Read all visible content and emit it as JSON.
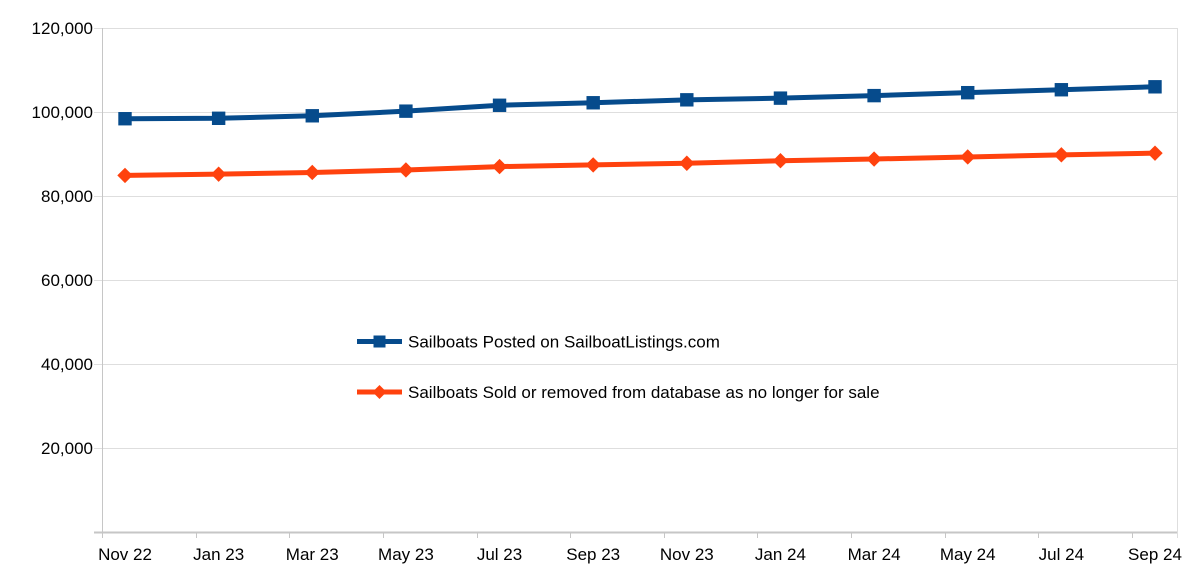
{
  "chart_data": {
    "type": "line",
    "title": "",
    "categories": [
      "Nov 22",
      "Jan 23",
      "Mar 23",
      "May 23",
      "Jul 23",
      "Sep 23",
      "Nov 23",
      "Jan 24",
      "Mar 24",
      "May 24",
      "Jul 24",
      "Sep 24"
    ],
    "series": [
      {
        "name": "Sailboats Posted on SailboatListings.com",
        "color": "#064b8c",
        "marker": "square",
        "values": [
          98400,
          98500,
          99100,
          100200,
          101600,
          102200,
          102900,
          103300,
          103900,
          104600,
          105300,
          106000
        ]
      },
      {
        "name": "Sailboats Sold or removed from database as no longer for sale",
        "color": "#ff420e",
        "marker": "diamond",
        "values": [
          84900,
          85200,
          85600,
          86200,
          87000,
          87400,
          87800,
          88400,
          88800,
          89300,
          89800,
          90200
        ]
      }
    ],
    "xlabel": "",
    "ylabel": "",
    "ylim": [
      0,
      120000
    ],
    "ytick_step": 20000,
    "ytick_labels": [
      "20,000",
      "40,000",
      "60,000",
      "80,000",
      "100,000",
      "120,000"
    ],
    "grid": true,
    "legend_position": "inside-center-left"
  }
}
